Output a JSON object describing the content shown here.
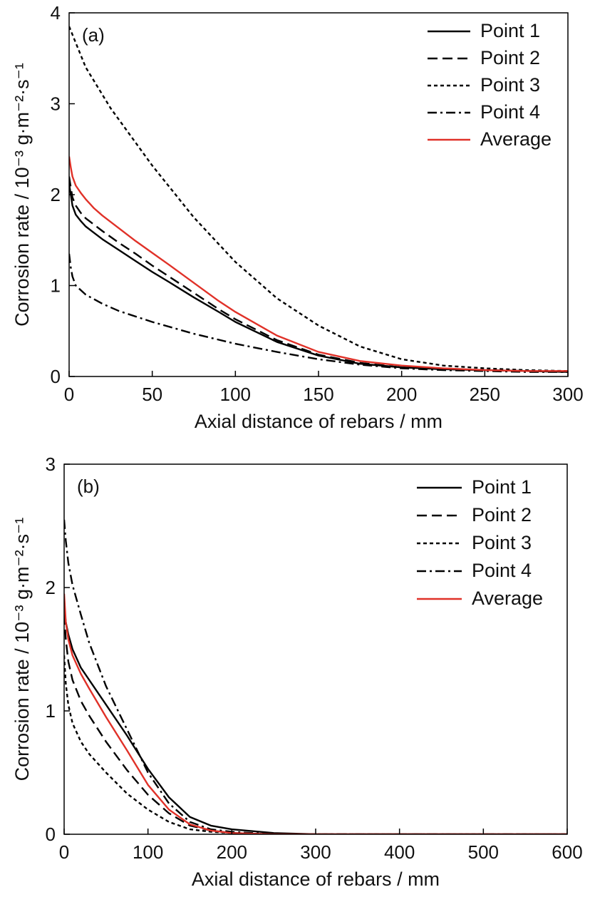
{
  "chart_data": [
    {
      "type": "line",
      "panel_label": "(a)",
      "xlabel": "Axial distance of rebars / mm",
      "ylabel": "Corrosion rate / 10⁻³ g·m⁻²·s⁻¹",
      "xlim": [
        0,
        300
      ],
      "ylim": [
        0,
        4
      ],
      "xticks": [
        0,
        50,
        100,
        150,
        200,
        250,
        300
      ],
      "yticks": [
        0,
        1,
        2,
        3,
        4
      ],
      "grid": false,
      "legend_position": "top-right",
      "series": [
        {
          "name": "Point 1",
          "style": "solid",
          "color": "#000000",
          "x": [
            0,
            1,
            2,
            4,
            7,
            10,
            15,
            20,
            30,
            40,
            50,
            60,
            75,
            90,
            100,
            125,
            150,
            175,
            200,
            225,
            250,
            275,
            300
          ],
          "y": [
            2.12,
            2.0,
            1.88,
            1.78,
            1.71,
            1.65,
            1.58,
            1.51,
            1.39,
            1.27,
            1.15,
            1.04,
            0.87,
            0.71,
            0.6,
            0.38,
            0.23,
            0.14,
            0.1,
            0.08,
            0.07,
            0.06,
            0.05
          ]
        },
        {
          "name": "Point 2",
          "style": "dashed",
          "color": "#000000",
          "x": [
            0,
            1,
            2,
            4,
            7,
            10,
            15,
            20,
            30,
            40,
            50,
            60,
            75,
            90,
            100,
            125,
            150,
            175,
            200,
            225,
            250,
            275,
            300
          ],
          "y": [
            2.2,
            2.08,
            1.97,
            1.88,
            1.8,
            1.74,
            1.67,
            1.6,
            1.47,
            1.35,
            1.22,
            1.1,
            0.92,
            0.74,
            0.63,
            0.4,
            0.24,
            0.15,
            0.1,
            0.08,
            0.07,
            0.06,
            0.05
          ]
        },
        {
          "name": "Point 3",
          "style": "dotted",
          "color": "#000000",
          "x": [
            0,
            10,
            25,
            50,
            75,
            100,
            125,
            150,
            175,
            200,
            225,
            250,
            275,
            300
          ],
          "y": [
            3.85,
            3.4,
            2.95,
            2.32,
            1.75,
            1.26,
            0.86,
            0.56,
            0.33,
            0.19,
            0.12,
            0.09,
            0.07,
            0.06
          ]
        },
        {
          "name": "Point 4",
          "style": "dashdot",
          "color": "#000000",
          "x": [
            0,
            1,
            2,
            4,
            7,
            10,
            20,
            30,
            50,
            75,
            100,
            125,
            150,
            175,
            200,
            225,
            250,
            275,
            300
          ],
          "y": [
            1.35,
            1.2,
            1.1,
            1.0,
            0.95,
            0.9,
            0.8,
            0.72,
            0.6,
            0.47,
            0.36,
            0.27,
            0.19,
            0.13,
            0.09,
            0.07,
            0.06,
            0.05,
            0.05
          ]
        },
        {
          "name": "Average",
          "style": "solid",
          "color": "#e03128",
          "x": [
            0,
            1,
            2,
            4,
            7,
            10,
            15,
            20,
            30,
            40,
            50,
            60,
            75,
            90,
            100,
            125,
            150,
            175,
            200,
            225,
            250,
            275,
            300
          ],
          "y": [
            2.42,
            2.3,
            2.2,
            2.1,
            2.02,
            1.95,
            1.85,
            1.77,
            1.63,
            1.49,
            1.36,
            1.23,
            1.03,
            0.83,
            0.71,
            0.45,
            0.27,
            0.17,
            0.12,
            0.09,
            0.07,
            0.06,
            0.06
          ]
        }
      ]
    },
    {
      "type": "line",
      "panel_label": "(b)",
      "xlabel": "Axial distance of rebars / mm",
      "ylabel": "Corrosion rate / 10⁻³ g·m⁻²·s⁻¹",
      "xlim": [
        0,
        600
      ],
      "ylim": [
        0,
        3
      ],
      "xticks": [
        0,
        100,
        200,
        300,
        400,
        500,
        600
      ],
      "yticks": [
        0,
        1,
        2,
        3
      ],
      "grid": false,
      "legend_position": "top-right",
      "series": [
        {
          "name": "Point 1",
          "style": "solid",
          "color": "#000000",
          "x": [
            0,
            2,
            5,
            10,
            20,
            30,
            50,
            75,
            100,
            125,
            150,
            175,
            200,
            250,
            300,
            400,
            500,
            600
          ],
          "y": [
            1.85,
            1.72,
            1.62,
            1.5,
            1.35,
            1.25,
            1.05,
            0.8,
            0.53,
            0.3,
            0.14,
            0.07,
            0.04,
            0.01,
            0.0,
            0.0,
            0.0,
            0.0
          ]
        },
        {
          "name": "Point 2",
          "style": "dashed",
          "color": "#000000",
          "x": [
            0,
            2,
            5,
            10,
            20,
            30,
            50,
            75,
            100,
            125,
            150,
            175,
            200,
            250,
            300,
            400,
            500,
            600
          ],
          "y": [
            1.78,
            1.58,
            1.4,
            1.25,
            1.08,
            0.96,
            0.75,
            0.52,
            0.32,
            0.17,
            0.07,
            0.03,
            0.01,
            0.0,
            0.0,
            0.0,
            0.0,
            0.0
          ]
        },
        {
          "name": "Point 3",
          "style": "dotted",
          "color": "#000000",
          "x": [
            0,
            2,
            5,
            10,
            20,
            30,
            50,
            75,
            100,
            125,
            150,
            175,
            200,
            250,
            300,
            400,
            500,
            600
          ],
          "y": [
            1.45,
            1.22,
            1.05,
            0.9,
            0.75,
            0.65,
            0.5,
            0.33,
            0.2,
            0.1,
            0.04,
            0.02,
            0.01,
            0.0,
            0.0,
            0.0,
            0.0,
            0.0
          ]
        },
        {
          "name": "Point 4",
          "style": "dashdot",
          "color": "#000000",
          "x": [
            0,
            2,
            5,
            10,
            20,
            30,
            50,
            75,
            100,
            125,
            150,
            175,
            200,
            250,
            300,
            400,
            500,
            600
          ],
          "y": [
            2.55,
            2.38,
            2.2,
            2.02,
            1.78,
            1.55,
            1.2,
            0.85,
            0.5,
            0.25,
            0.1,
            0.04,
            0.02,
            0.0,
            0.0,
            0.0,
            0.0,
            0.0
          ]
        },
        {
          "name": "Average",
          "style": "solid",
          "color": "#e03128",
          "x": [
            0,
            2,
            5,
            10,
            20,
            30,
            50,
            75,
            100,
            125,
            150,
            175,
            200,
            250,
            300,
            400,
            500,
            600
          ],
          "y": [
            1.95,
            1.72,
            1.58,
            1.45,
            1.3,
            1.18,
            0.95,
            0.68,
            0.4,
            0.2,
            0.08,
            0.03,
            0.01,
            0.0,
            0.0,
            0.0,
            0.0,
            0.0
          ]
        }
      ]
    }
  ]
}
